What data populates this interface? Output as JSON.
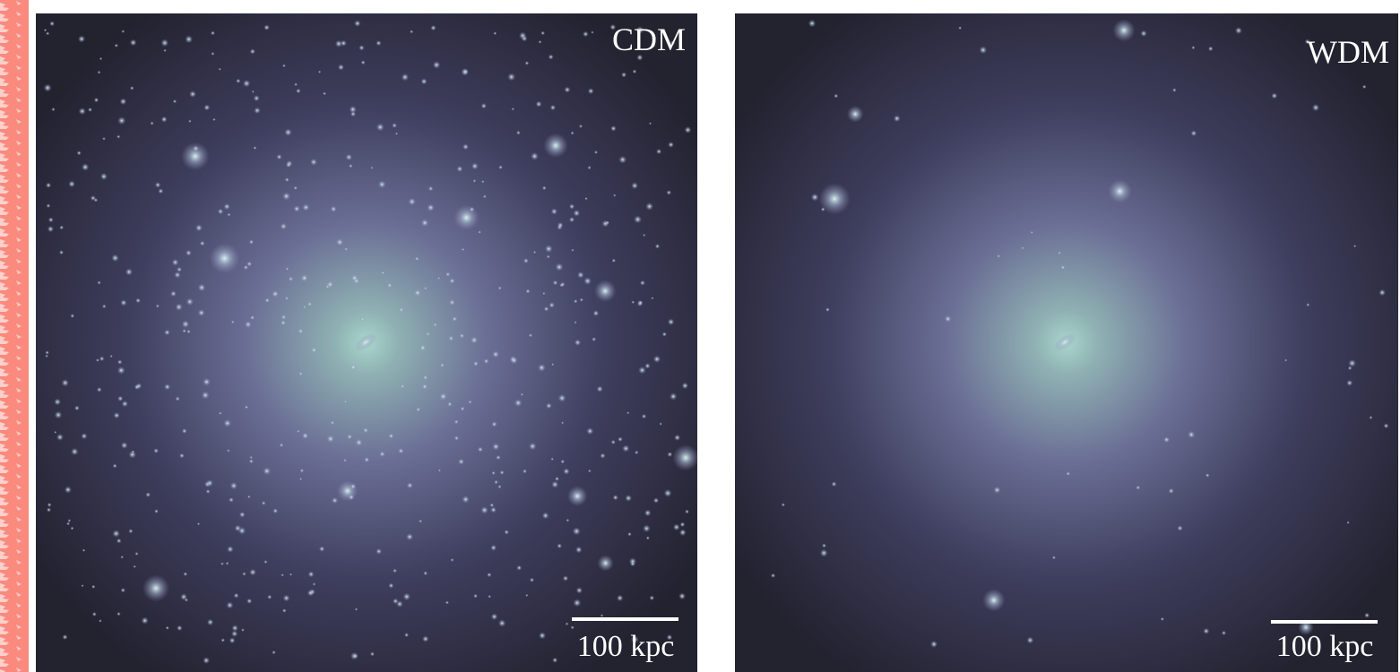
{
  "panels": [
    {
      "label": "CDM",
      "scale_bar": "100 kpc"
    },
    {
      "label": "WDM",
      "scale_bar": "100 kpc"
    }
  ]
}
